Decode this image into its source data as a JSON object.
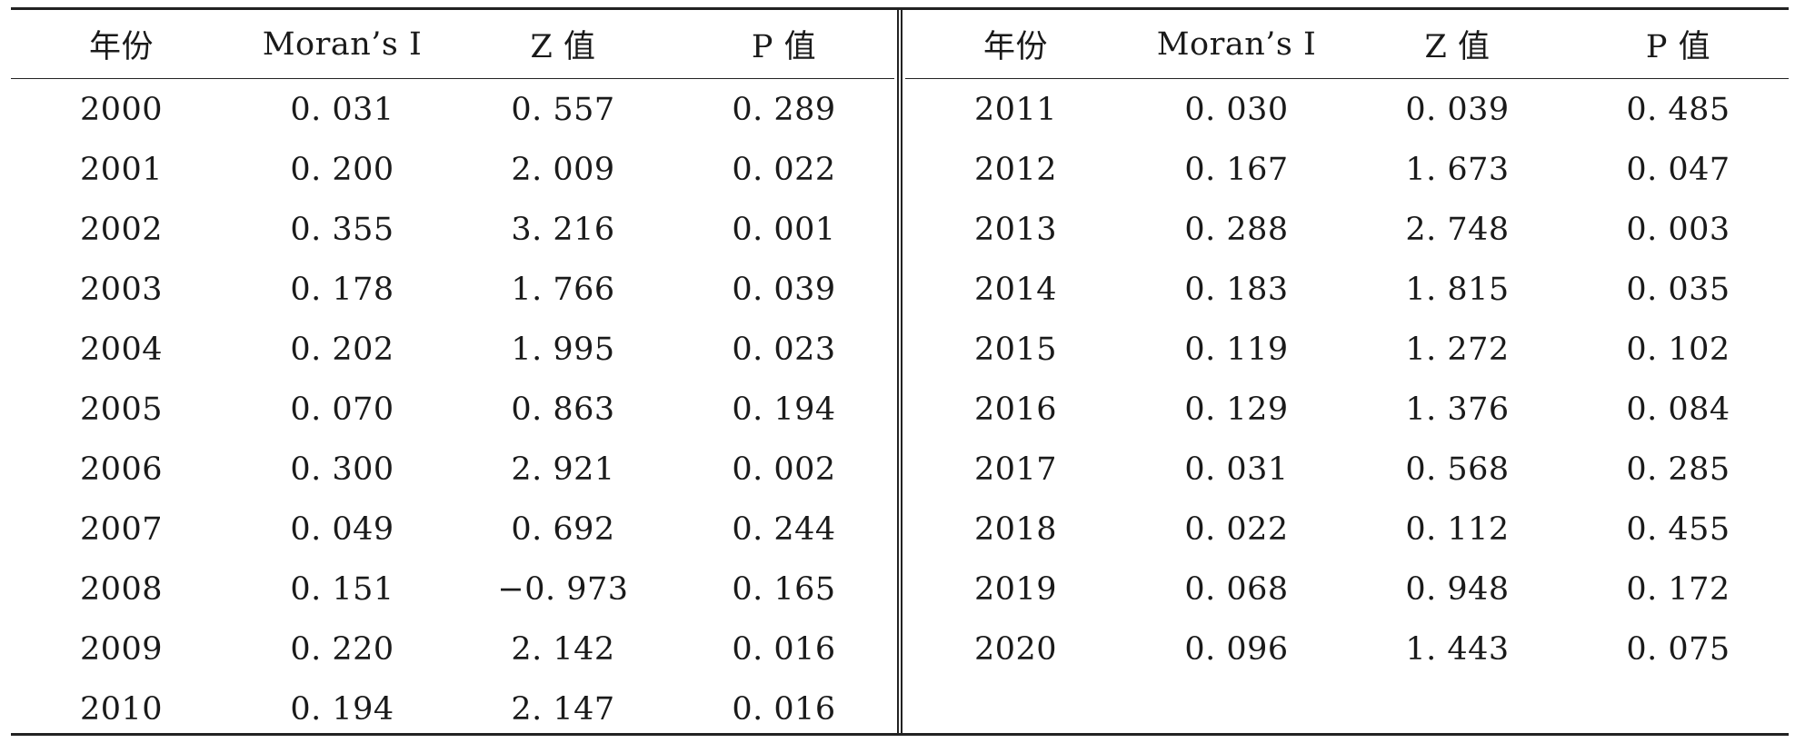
{
  "table": {
    "headers": [
      "年份",
      "Moran’s I",
      "Z 值",
      "P 值"
    ],
    "left_rows": [
      [
        "2000",
        "0. 031",
        "0. 557",
        "0. 289"
      ],
      [
        "2001",
        "0. 200",
        "2. 009",
        "0. 022"
      ],
      [
        "2002",
        "0. 355",
        "3. 216",
        "0. 001"
      ],
      [
        "2003",
        "0. 178",
        "1. 766",
        "0. 039"
      ],
      [
        "2004",
        "0. 202",
        "1. 995",
        "0. 023"
      ],
      [
        "2005",
        "0. 070",
        "0. 863",
        "0. 194"
      ],
      [
        "2006",
        "0. 300",
        "2. 921",
        "0. 002"
      ],
      [
        "2007",
        "0. 049",
        "0. 692",
        "0. 244"
      ],
      [
        "2008",
        "0. 151",
        "−0. 973",
        "0. 165"
      ],
      [
        "2009",
        "0. 220",
        "2. 142",
        "0. 016"
      ],
      [
        "2010",
        "0. 194",
        "2. 147",
        "0. 016"
      ]
    ],
    "right_rows": [
      [
        "2011",
        "0. 030",
        "0. 039",
        "0. 485"
      ],
      [
        "2012",
        "0. 167",
        "1. 673",
        "0. 047"
      ],
      [
        "2013",
        "0. 288",
        "2. 748",
        "0. 003"
      ],
      [
        "2014",
        "0. 183",
        "1. 815",
        "0. 035"
      ],
      [
        "2015",
        "0. 119",
        "1. 272",
        "0. 102"
      ],
      [
        "2016",
        "0. 129",
        "1. 376",
        "0. 084"
      ],
      [
        "2017",
        "0. 031",
        "0. 568",
        "0. 285"
      ],
      [
        "2018",
        "0. 022",
        "0. 112",
        "0. 455"
      ],
      [
        "2019",
        "0. 068",
        "0. 948",
        "0. 172"
      ],
      [
        "2020",
        "0. 096",
        "1. 443",
        "0. 075"
      ]
    ]
  }
}
